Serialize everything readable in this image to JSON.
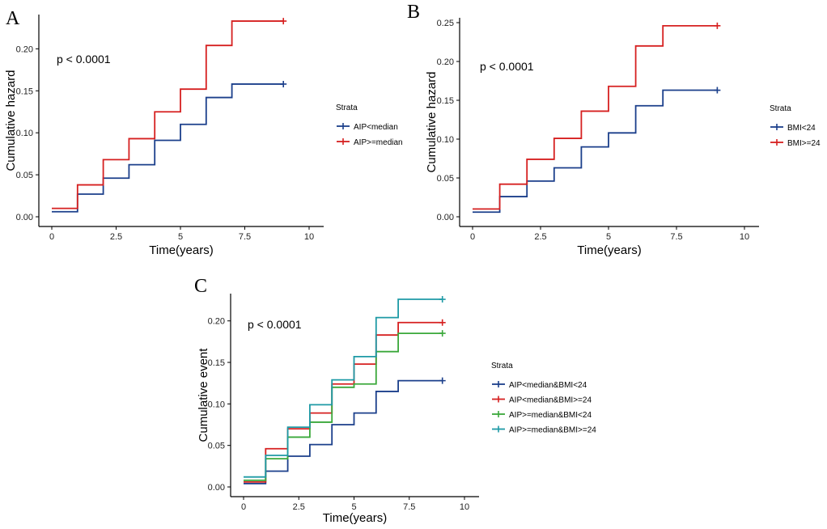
{
  "chart_data": [
    {
      "panel": "A",
      "type": "line",
      "step": true,
      "pvalue": "p < 0.0001",
      "xlabel": "Time(years)",
      "ylabel": "Cumulative hazard",
      "xlim": [
        0,
        10
      ],
      "ylim": [
        0,
        0.235
      ],
      "xticks": [
        0,
        2.5,
        5,
        7.5,
        10
      ],
      "xtick_labels": [
        "0",
        "2.5",
        "5",
        "7.5",
        "10"
      ],
      "yticks": [
        0,
        0.05,
        0.1,
        0.15,
        0.2
      ],
      "ytick_labels": [
        "0.00",
        "0.05",
        "0.10",
        "0.15",
        "0.20"
      ],
      "legend_title": "Strata",
      "series": [
        {
          "name": "AIP<median",
          "color": "#1b3f8b",
          "x": [
            0,
            1,
            2,
            3,
            4,
            5,
            6,
            7,
            9
          ],
          "values": [
            0.006,
            0.027,
            0.046,
            0.062,
            0.091,
            0.11,
            0.142,
            0.158,
            0.158
          ]
        },
        {
          "name": "AIP>=median",
          "color": "#d62020",
          "x": [
            0,
            1,
            2,
            3,
            4,
            5,
            6,
            7,
            9
          ],
          "values": [
            0.01,
            0.038,
            0.068,
            0.093,
            0.125,
            0.152,
            0.204,
            0.233,
            0.233
          ]
        }
      ]
    },
    {
      "panel": "B",
      "type": "line",
      "step": true,
      "pvalue": "p < 0.0001",
      "xlabel": "Time(years)",
      "ylabel": "Cumulative hazard",
      "xlim": [
        0,
        10
      ],
      "ylim": [
        0,
        0.25
      ],
      "xticks": [
        0,
        2.5,
        5,
        7.5,
        10
      ],
      "xtick_labels": [
        "0",
        "2.5",
        "5",
        "7.5",
        "10"
      ],
      "yticks": [
        0,
        0.05,
        0.1,
        0.15,
        0.2,
        0.25
      ],
      "ytick_labels": [
        "0.00",
        "0.05",
        "0.10",
        "0.15",
        "0.20",
        "0.25"
      ],
      "legend_title": "Strata",
      "series": [
        {
          "name": "BMI<24",
          "color": "#1b3f8b",
          "x": [
            0,
            1,
            2,
            3,
            4,
            5,
            6,
            7,
            9
          ],
          "values": [
            0.006,
            0.026,
            0.046,
            0.063,
            0.09,
            0.108,
            0.143,
            0.163,
            0.163
          ]
        },
        {
          "name": "BMI>=24",
          "color": "#d62020",
          "x": [
            0,
            1,
            2,
            3,
            4,
            5,
            6,
            7,
            9
          ],
          "values": [
            0.01,
            0.042,
            0.074,
            0.101,
            0.136,
            0.168,
            0.22,
            0.246,
            0.246
          ]
        }
      ]
    },
    {
      "panel": "C",
      "type": "line",
      "step": true,
      "pvalue": "p < 0.0001",
      "xlabel": "Time(years)",
      "ylabel": "Cumulative event",
      "xlim": [
        0,
        10
      ],
      "ylim": [
        0,
        0.227
      ],
      "xticks": [
        0,
        2.5,
        5,
        7.5,
        10
      ],
      "xtick_labels": [
        "0",
        "2.5",
        "5",
        "7.5",
        "10"
      ],
      "yticks": [
        0,
        0.05,
        0.1,
        0.15,
        0.2
      ],
      "ytick_labels": [
        "0.00",
        "0.05",
        "0.10",
        "0.15",
        "0.20"
      ],
      "legend_title": "Strata",
      "series": [
        {
          "name": "AIP<median&BMI<24",
          "color": "#1b3f8b",
          "x": [
            0,
            1,
            2,
            3,
            4,
            5,
            6,
            7,
            9
          ],
          "values": [
            0.004,
            0.019,
            0.037,
            0.051,
            0.075,
            0.089,
            0.115,
            0.128,
            0.128
          ]
        },
        {
          "name": "AIP<median&BMI>=24",
          "color": "#d62020",
          "x": [
            0,
            1,
            2,
            3,
            4,
            5,
            6,
            7,
            9
          ],
          "values": [
            0.006,
            0.046,
            0.07,
            0.089,
            0.124,
            0.148,
            0.183,
            0.198,
            0.198
          ]
        },
        {
          "name": "AIP>=median&BMI<24",
          "color": "#3aa83a",
          "x": [
            0,
            1,
            2,
            3,
            4,
            5,
            6,
            7,
            9
          ],
          "values": [
            0.008,
            0.034,
            0.06,
            0.078,
            0.12,
            0.124,
            0.163,
            0.185,
            0.185
          ]
        },
        {
          "name": "AIP>=median&BMI>=24",
          "color": "#1e9aa6",
          "x": [
            0,
            1,
            2,
            3,
            4,
            5,
            6,
            7,
            9
          ],
          "values": [
            0.012,
            0.038,
            0.072,
            0.099,
            0.129,
            0.157,
            0.204,
            0.226,
            0.226
          ]
        }
      ]
    }
  ]
}
